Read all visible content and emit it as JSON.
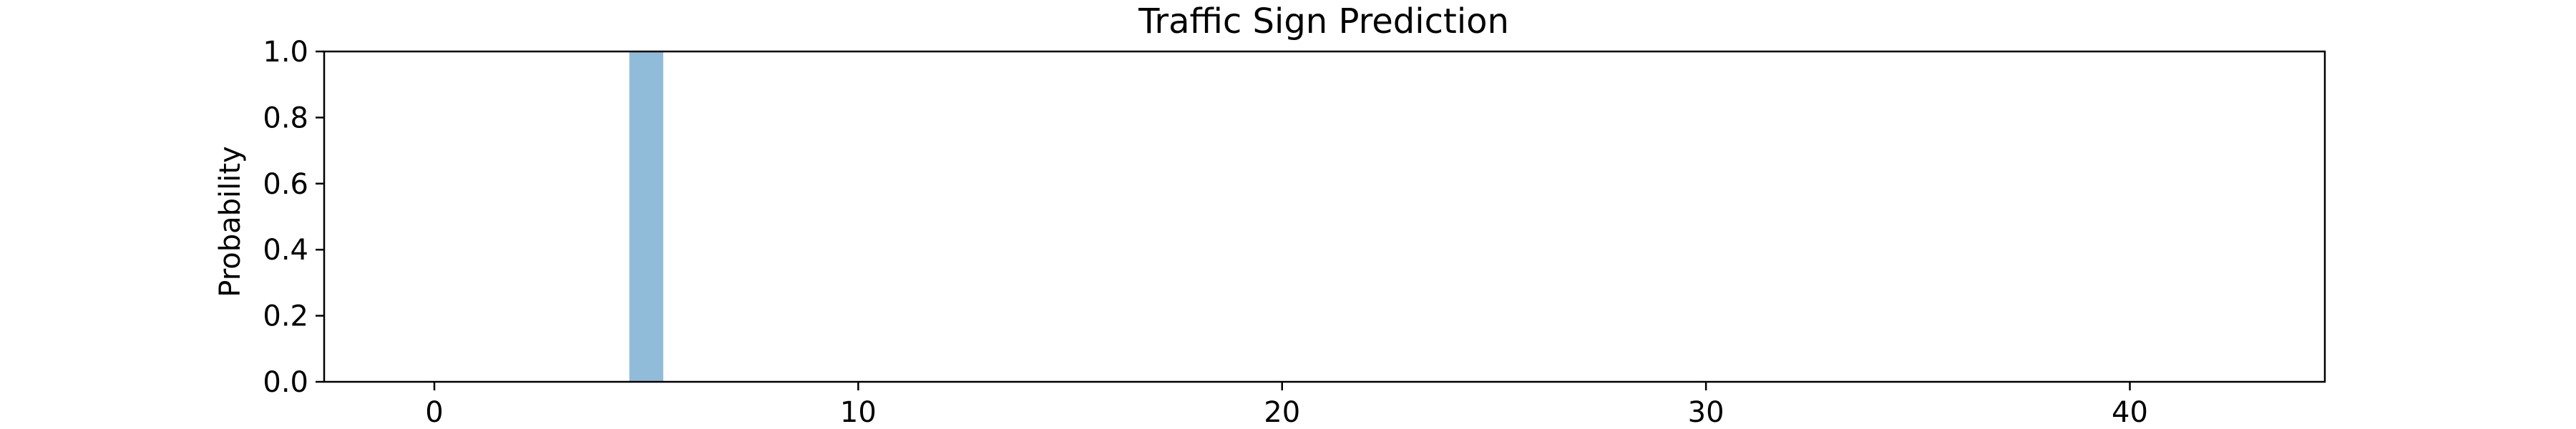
{
  "chart_data": {
    "type": "bar",
    "title": "Traffic Sign Prediction",
    "xlabel": "",
    "ylabel": "Probability",
    "xlim": [
      -2.6,
      44.6
    ],
    "ylim": [
      0,
      1
    ],
    "xticks": [
      0,
      10,
      20,
      30,
      40
    ],
    "yticks": [
      0.0,
      0.2,
      0.4,
      0.6,
      0.8,
      1.0
    ],
    "ytick_labels": [
      "0.0",
      "0.2",
      "0.4",
      "0.6",
      "0.8",
      "1.0"
    ],
    "grid": false,
    "bar_color": "#91bcd9",
    "x": [
      5
    ],
    "values": [
      1.0
    ]
  }
}
